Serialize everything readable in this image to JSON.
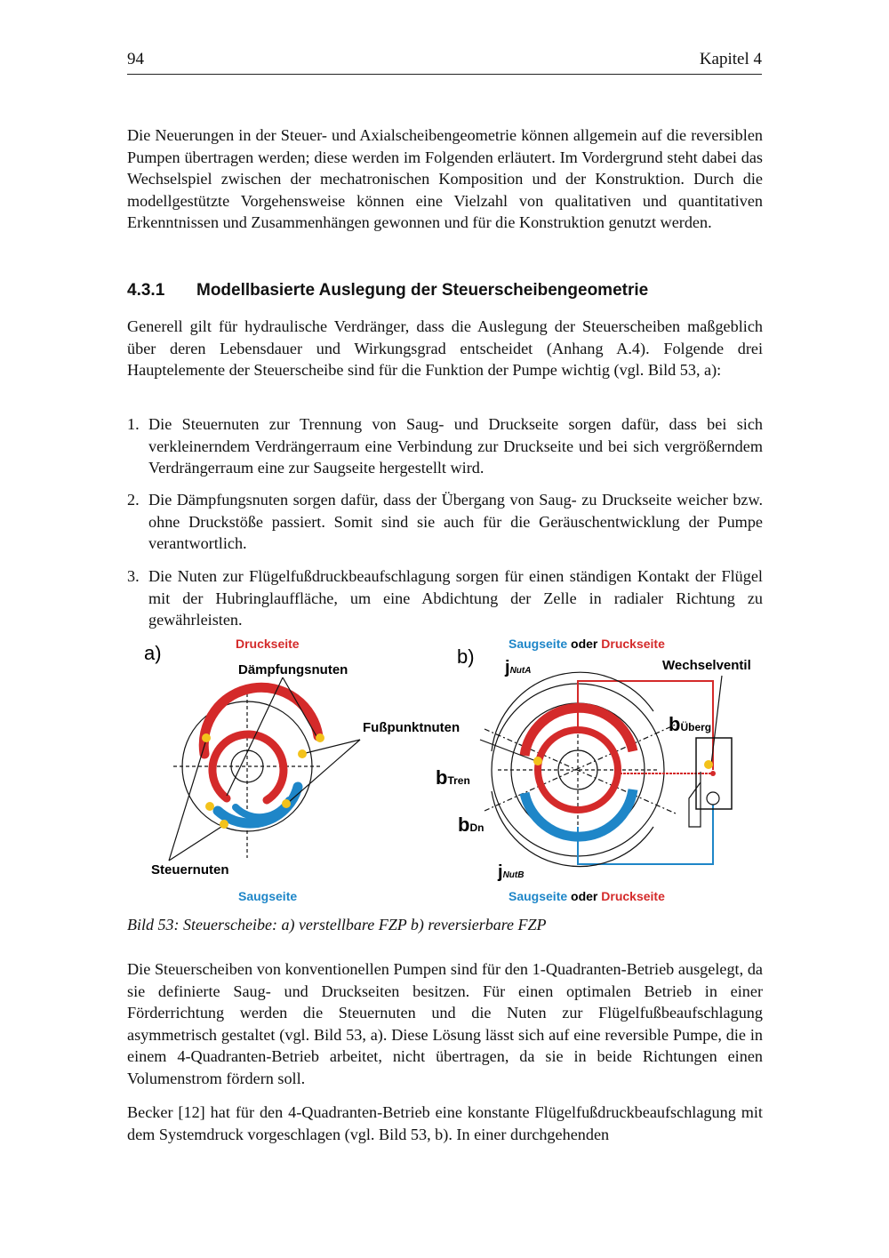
{
  "header": {
    "page_number": "94",
    "chapter": "Kapitel 4"
  },
  "intro": "Die Neuerungen in der Steuer- und Axialscheibengeometrie können allgemein auf die reversiblen Pumpen übertragen werden; diese werden im Folgenden erläutert. Im Vordergrund steht dabei das Wechselspiel zwischen der mechatronischen Komposition und der Konstruktion. Durch die modellgestützte Vorgehensweise können eine Vielzahl von qualitativen und quantitativen Erkenntnissen und Zusammenhängen gewonnen und für die Konstruktion genutzt werden.",
  "section": {
    "number": "4.3.1",
    "title": "Modellbasierte Auslegung der Steuerscheibengeometrie"
  },
  "para1": "Generell gilt für hydraulische Verdränger, dass die Auslegung der Steuerscheiben maßgeblich über deren Lebensdauer und Wirkungsgrad entscheidet (Anhang A.4). Folgende drei Hauptelemente der Steuerscheibe sind für die Funktion der Pumpe wichtig (vgl. Bild 53, a):",
  "list": [
    {
      "n": "1.",
      "text": "Die Steuernuten zur Trennung von Saug- und Druckseite sorgen dafür, dass bei sich verkleinerndem Verdrängerraum eine Verbindung zur Druckseite und bei sich vergrößerndem Verdrängerraum eine zur Saugseite hergestellt wird."
    },
    {
      "n": "2.",
      "text": "Die Dämpfungsnuten sorgen dafür, dass der Übergang von Saug- zu Druckseite weicher bzw. ohne Druckstöße passiert. Somit sind sie auch für die Geräuschentwicklung der Pumpe verantwortlich."
    },
    {
      "n": "3.",
      "text": "Die Nuten zur Flügelfußdruckbeaufschlagung sorgen für einen ständigen Kontakt der Flügel mit der Hubringlauffläche, um eine Abdichtung der Zelle in radialer Richtung zu gewährleisten."
    }
  ],
  "figure": {
    "label_a": "a)",
    "label_b": "b)",
    "druckseite": "Druckseite",
    "saugseite": "Saugseite",
    "oder": "oder",
    "daempfungsnuten": "Dämpfungsnuten",
    "fusspunktnuten": "Fußpunktnuten",
    "steuernuten": "Steuernuten",
    "wechselventil": "Wechselventil",
    "j": "j",
    "nutA": "NutA",
    "nutB": "NutB",
    "b": "b",
    "ueberg": "Überg",
    "tren": "Tren",
    "dn": "Dn",
    "colors": {
      "red": "#d42a2a",
      "blue": "#1e86c8",
      "yellow": "#f3c21b"
    }
  },
  "caption": "Bild 53: Steuerscheibe: a) verstellbare FZP  b) reversierbare FZP",
  "para2": "Die Steuerscheiben von konventionellen Pumpen sind für den 1-Quadranten-Betrieb ausgelegt, da sie definierte Saug- und Druckseiten besitzen. Für einen optimalen Betrieb in einer Förderrichtung werden die Steuernuten und die Nuten zur Flügelfußbeaufschlagung asymmetrisch gestaltet (vgl. Bild 53, a). Diese Lösung lässt sich auf eine reversible Pumpe, die in einem 4-Quadranten-Betrieb arbeitet, nicht übertragen, da sie in beide Richtungen einen Volumenstrom fördern soll.",
  "para3": "Becker [12] hat für den 4-Quadranten-Betrieb eine konstante Flügelfußdruckbeaufschlagung mit dem Systemdruck vorgeschlagen (vgl. Bild 53, b). In einer durchgehenden"
}
